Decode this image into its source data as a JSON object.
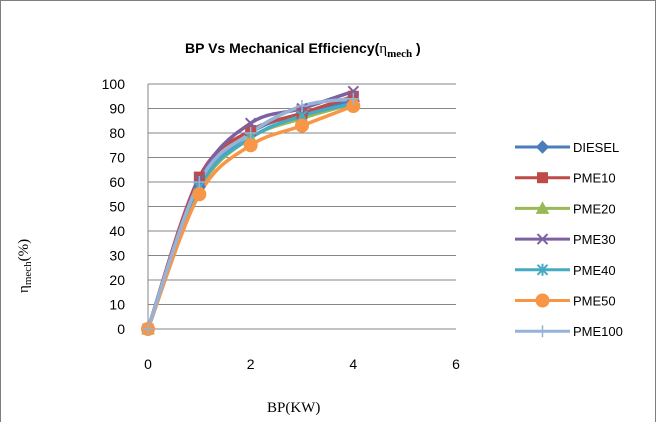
{
  "chart_data": {
    "type": "line",
    "title": {
      "main": "BP Vs Mechanical Efficiency(",
      "symbol": "η",
      "subscript": "mech",
      "close": " )"
    },
    "xlabel": "BP(KW)",
    "ylabel": {
      "symbol": "η",
      "subscript": "mech",
      "suffix": "(%)"
    },
    "xlim": [
      0,
      6
    ],
    "ylim": [
      0,
      100
    ],
    "x_ticks": [
      "0",
      "2",
      "4",
      "6"
    ],
    "y_ticks": [
      "0",
      "10",
      "20",
      "30",
      "40",
      "50",
      "60",
      "70",
      "80",
      "90",
      "100"
    ],
    "grid": "horizontal major",
    "legend_position": "right",
    "smooth": true,
    "series": [
      {
        "name": "DIESEL",
        "color": "#4a7ebb",
        "marker": "diamond",
        "x": [
          0,
          1,
          2,
          3,
          4
        ],
        "y": [
          0,
          58,
          80,
          88,
          93
        ]
      },
      {
        "name": "PME10",
        "color": "#be4b48",
        "marker": "square",
        "x": [
          0,
          1,
          2,
          3,
          4
        ],
        "y": [
          0,
          62,
          81,
          88,
          95
        ]
      },
      {
        "name": "PME20",
        "color": "#98b954",
        "marker": "triangle",
        "x": [
          0,
          1,
          2,
          3,
          4
        ],
        "y": [
          0,
          57,
          78,
          86,
          92
        ]
      },
      {
        "name": "PME30",
        "color": "#7d60a0",
        "marker": "x",
        "x": [
          0,
          1,
          2,
          3,
          4
        ],
        "y": [
          0,
          61,
          84,
          90,
          97
        ]
      },
      {
        "name": "PME40",
        "color": "#46aac4",
        "marker": "asterisk",
        "x": [
          0,
          1,
          2,
          3,
          4
        ],
        "y": [
          0,
          58,
          78,
          87,
          92
        ]
      },
      {
        "name": "PME50",
        "color": "#f79646",
        "marker": "circle",
        "x": [
          0,
          1,
          2,
          3,
          4
        ],
        "y": [
          0,
          55,
          75,
          83,
          91
        ]
      },
      {
        "name": "PME100",
        "color": "#95b3d7",
        "marker": "plus",
        "x": [
          0,
          1,
          2,
          3,
          4
        ],
        "y": [
          0,
          60,
          80,
          91,
          94
        ]
      }
    ]
  }
}
